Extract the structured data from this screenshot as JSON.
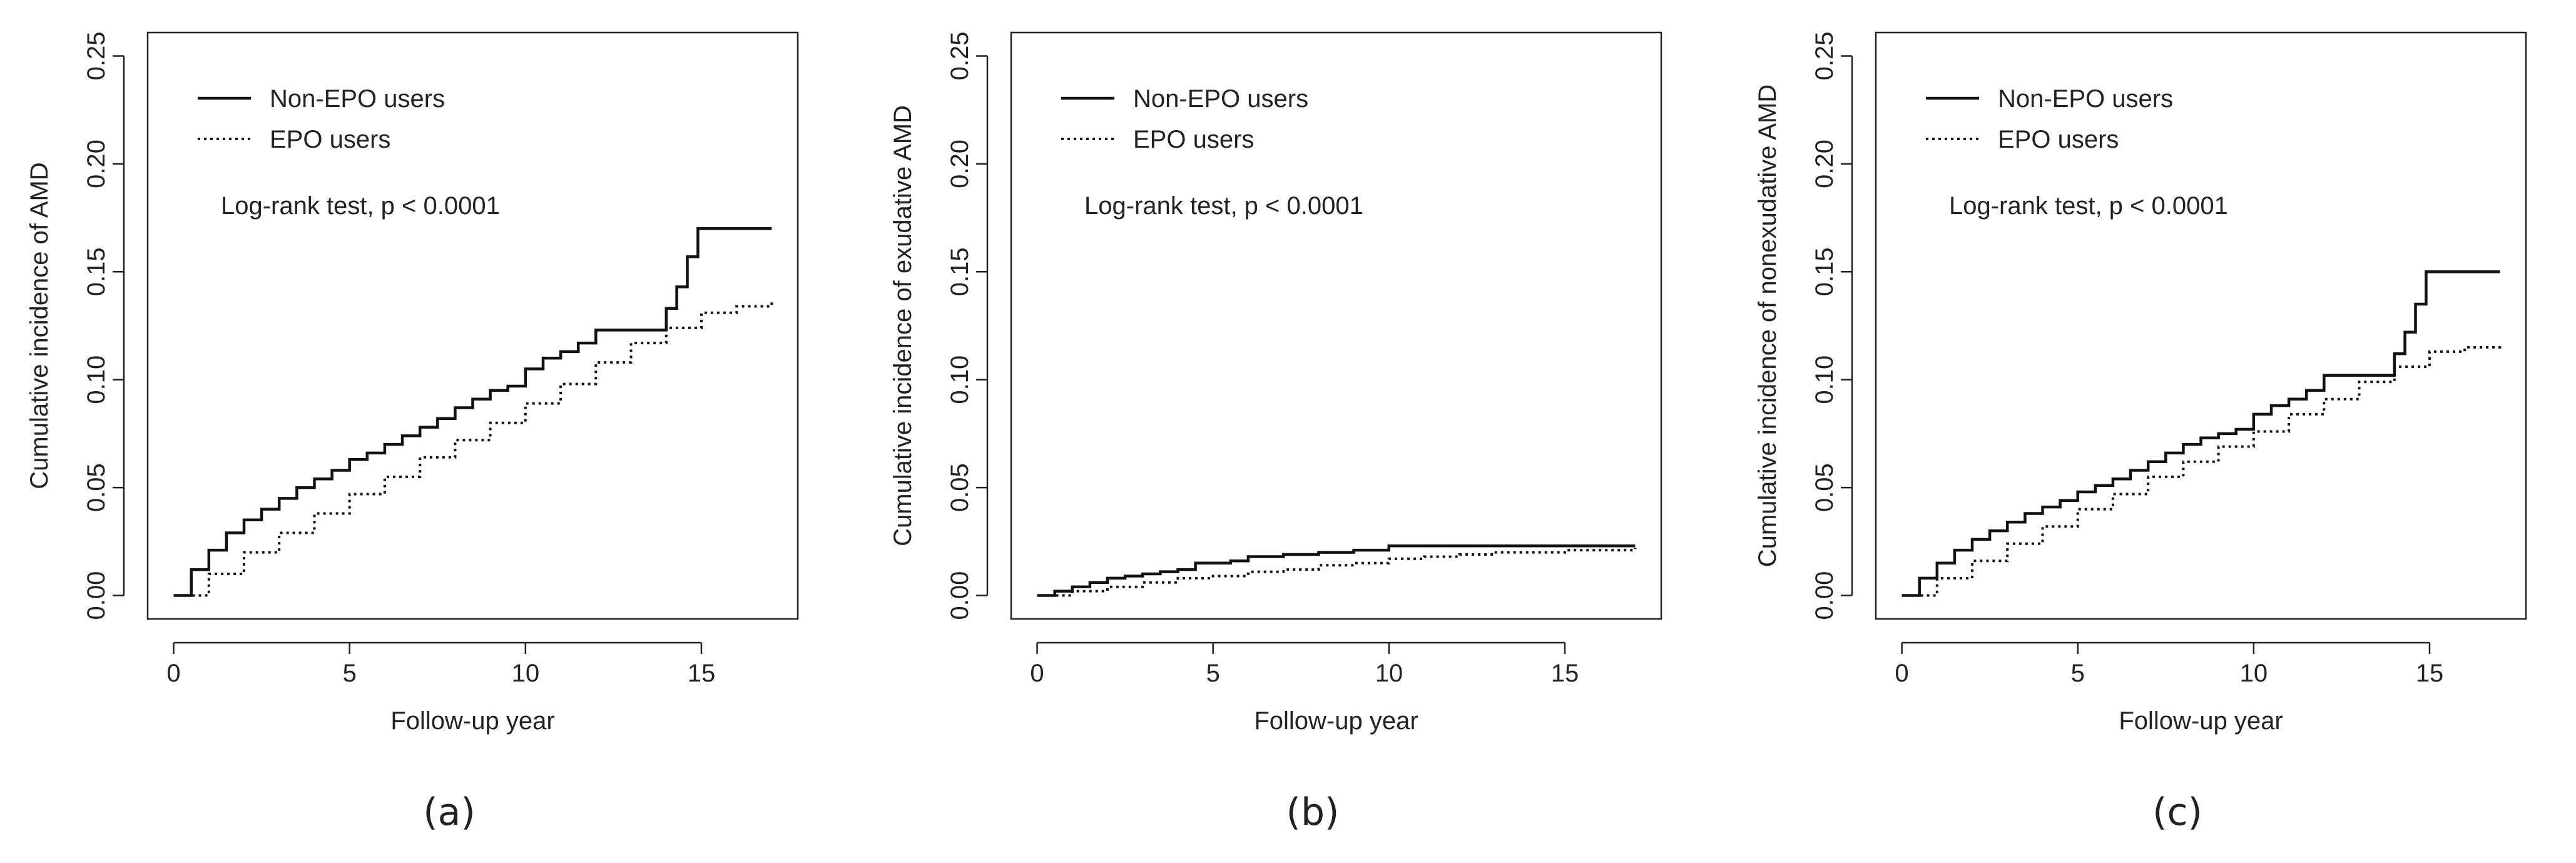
{
  "legend": {
    "non_epo": "Non-EPO users",
    "epo": "EPO users"
  },
  "annotation": "Log-rank test, p < 0.0001",
  "chart_data": [
    {
      "type": "line",
      "step": true,
      "panel_label": "(a)",
      "xlabel": "Follow-up year",
      "ylabel": "Cumulative incidence of AMD",
      "xlim": [
        0,
        17
      ],
      "ylim": [
        0,
        0.25
      ],
      "xticks": [
        0,
        5,
        10,
        15
      ],
      "yticks": [
        0.0,
        0.05,
        0.1,
        0.15,
        0.2,
        0.25
      ],
      "legend_position": "top-left",
      "annotation": "Log-rank test, p < 0.0001",
      "series": [
        {
          "name": "Non-EPO users",
          "style": "solid",
          "x": [
            0,
            0.5,
            1,
            1.5,
            2,
            2.5,
            3,
            3.5,
            4,
            4.5,
            5,
            5.5,
            6,
            6.5,
            7,
            7.5,
            8,
            8.5,
            9,
            9.5,
            10,
            10.5,
            11,
            11.5,
            12,
            13.7,
            14.0,
            14.3,
            14.6,
            14.9,
            17
          ],
          "y": [
            0,
            0.012,
            0.021,
            0.029,
            0.035,
            0.04,
            0.045,
            0.05,
            0.054,
            0.058,
            0.063,
            0.066,
            0.07,
            0.074,
            0.078,
            0.082,
            0.087,
            0.091,
            0.095,
            0.097,
            0.105,
            0.11,
            0.113,
            0.117,
            0.123,
            0.123,
            0.133,
            0.143,
            0.157,
            0.17,
            0.17
          ]
        },
        {
          "name": "EPO users",
          "style": "dotted",
          "x": [
            0,
            1,
            2,
            3,
            4,
            5,
            6,
            7,
            8,
            9,
            10,
            11,
            12,
            13,
            14,
            15,
            16,
            17
          ],
          "y": [
            0,
            0.01,
            0.02,
            0.029,
            0.038,
            0.047,
            0.055,
            0.064,
            0.072,
            0.08,
            0.089,
            0.098,
            0.108,
            0.117,
            0.124,
            0.131,
            0.134,
            0.137
          ]
        }
      ]
    },
    {
      "type": "line",
      "step": true,
      "panel_label": "(b)",
      "xlabel": "Follow-up year",
      "ylabel": "Cumulative incidence of exudative AMD",
      "xlim": [
        0,
        17
      ],
      "ylim": [
        0,
        0.25
      ],
      "xticks": [
        0,
        5,
        10,
        15
      ],
      "yticks": [
        0.0,
        0.05,
        0.1,
        0.15,
        0.2,
        0.25
      ],
      "legend_position": "top-left",
      "annotation": "Log-rank test, p < 0.0001",
      "series": [
        {
          "name": "Non-EPO users",
          "style": "solid",
          "x": [
            0,
            0.5,
            1,
            1.5,
            2,
            2.5,
            3,
            3.5,
            4,
            4.5,
            5,
            5.5,
            6,
            7,
            8,
            9,
            10,
            17
          ],
          "y": [
            0,
            0.002,
            0.004,
            0.006,
            0.008,
            0.009,
            0.01,
            0.011,
            0.012,
            0.015,
            0.015,
            0.016,
            0.018,
            0.019,
            0.02,
            0.021,
            0.023,
            0.023
          ]
        },
        {
          "name": "EPO users",
          "style": "dotted",
          "x": [
            0,
            1,
            2,
            3,
            4,
            5,
            6,
            7,
            8,
            9,
            10,
            11,
            12,
            13,
            14,
            15,
            16,
            17
          ],
          "y": [
            0,
            0.002,
            0.004,
            0.006,
            0.008,
            0.009,
            0.011,
            0.012,
            0.014,
            0.015,
            0.017,
            0.018,
            0.019,
            0.02,
            0.02,
            0.021,
            0.021,
            0.022
          ]
        }
      ]
    },
    {
      "type": "line",
      "step": true,
      "panel_label": "(c)",
      "xlabel": "Follow-up year",
      "ylabel": "Cumulative incidence of nonexudative AMD",
      "xlim": [
        0,
        17
      ],
      "ylim": [
        0,
        0.25
      ],
      "xticks": [
        0,
        5,
        10,
        15
      ],
      "yticks": [
        0.0,
        0.05,
        0.1,
        0.15,
        0.2,
        0.25
      ],
      "legend_position": "top-left",
      "annotation": "Log-rank test, p < 0.0001",
      "series": [
        {
          "name": "Non-EPO users",
          "style": "solid",
          "x": [
            0,
            0.5,
            1,
            1.5,
            2,
            2.5,
            3,
            3.5,
            4,
            4.5,
            5,
            5.5,
            6,
            6.5,
            7,
            7.5,
            8,
            8.5,
            9,
            9.5,
            10,
            10.5,
            11,
            11.5,
            12,
            13.7,
            14.0,
            14.3,
            14.6,
            14.9,
            17
          ],
          "y": [
            0,
            0.008,
            0.015,
            0.021,
            0.026,
            0.03,
            0.034,
            0.038,
            0.041,
            0.044,
            0.048,
            0.051,
            0.054,
            0.058,
            0.062,
            0.066,
            0.07,
            0.073,
            0.075,
            0.077,
            0.084,
            0.088,
            0.091,
            0.095,
            0.102,
            0.102,
            0.112,
            0.122,
            0.135,
            0.15,
            0.15
          ]
        },
        {
          "name": "EPO users",
          "style": "dotted",
          "x": [
            0,
            1,
            2,
            3,
            4,
            5,
            6,
            7,
            8,
            9,
            10,
            11,
            12,
            13,
            14,
            15,
            16,
            17
          ],
          "y": [
            0,
            0.008,
            0.016,
            0.024,
            0.032,
            0.04,
            0.047,
            0.055,
            0.062,
            0.069,
            0.076,
            0.084,
            0.091,
            0.099,
            0.106,
            0.113,
            0.115,
            0.117
          ]
        }
      ]
    }
  ]
}
